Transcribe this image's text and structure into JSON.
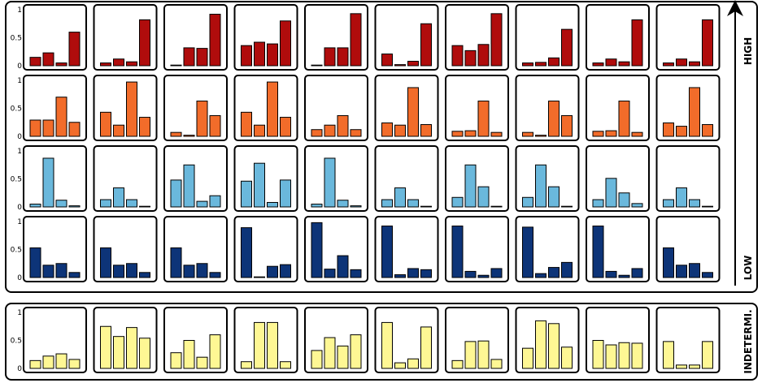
{
  "chart_data": {
    "type": "bar",
    "description_free": true,
    "yticks": [
      "0",
      "0.5",
      "1"
    ],
    "ylim": [
      0,
      1
    ],
    "groups": [
      {
        "label": "HIGH",
        "color": "#b00c0c",
        "values": [
          [
            0.15,
            0.23,
            0.05,
            0.6
          ],
          [
            0.05,
            0.12,
            0.07,
            0.82
          ],
          [
            0.0,
            0.32,
            0.31,
            0.92
          ],
          [
            0.36,
            0.42,
            0.39,
            0.8
          ],
          [
            0.0,
            0.32,
            0.32,
            0.93
          ],
          [
            0.21,
            0.02,
            0.08,
            0.75
          ],
          [
            0.36,
            0.27,
            0.38,
            0.93
          ],
          [
            0.05,
            0.06,
            0.14,
            0.65
          ],
          [
            0.05,
            0.12,
            0.07,
            0.82
          ],
          [
            0.05,
            0.12,
            0.07,
            0.82
          ]
        ]
      },
      {
        "label": "",
        "color": "#f26c2a",
        "values": [
          [
            0.29,
            0.29,
            0.7,
            0.25
          ],
          [
            0.43,
            0.2,
            0.97,
            0.34
          ],
          [
            0.07,
            0.02,
            0.63,
            0.37
          ],
          [
            0.43,
            0.2,
            0.97,
            0.34
          ],
          [
            0.12,
            0.2,
            0.37,
            0.12
          ],
          [
            0.24,
            0.2,
            0.87,
            0.21
          ],
          [
            0.09,
            0.1,
            0.63,
            0.07
          ],
          [
            0.07,
            0.02,
            0.63,
            0.37
          ],
          [
            0.09,
            0.1,
            0.63,
            0.07
          ],
          [
            0.24,
            0.18,
            0.87,
            0.21
          ]
        ]
      },
      {
        "label": "",
        "color": "#6ab8dc",
        "values": [
          [
            0.05,
            0.87,
            0.12,
            0.02
          ],
          [
            0.13,
            0.34,
            0.13,
            0.0
          ],
          [
            0.48,
            0.75,
            0.1,
            0.2
          ],
          [
            0.46,
            0.78,
            0.08,
            0.48
          ],
          [
            0.05,
            0.87,
            0.12,
            0.02
          ],
          [
            0.13,
            0.34,
            0.13,
            0.0
          ],
          [
            0.17,
            0.75,
            0.36,
            0.0
          ],
          [
            0.17,
            0.75,
            0.36,
            0.0
          ],
          [
            0.13,
            0.51,
            0.25,
            0.06
          ],
          [
            0.13,
            0.34,
            0.13,
            0.0
          ]
        ]
      },
      {
        "label": "LOW",
        "color": "#0d3478",
        "values": [
          [
            0.53,
            0.22,
            0.25,
            0.09
          ],
          [
            0.53,
            0.22,
            0.25,
            0.09
          ],
          [
            0.53,
            0.22,
            0.25,
            0.09
          ],
          [
            0.89,
            0.0,
            0.2,
            0.23
          ],
          [
            0.98,
            0.15,
            0.39,
            0.14
          ],
          [
            0.92,
            0.05,
            0.16,
            0.14
          ],
          [
            0.92,
            0.11,
            0.04,
            0.16
          ],
          [
            0.9,
            0.07,
            0.18,
            0.27
          ],
          [
            0.92,
            0.11,
            0.04,
            0.16
          ],
          [
            0.53,
            0.22,
            0.25,
            0.09
          ]
        ]
      },
      {
        "label": "INDETERMI.",
        "color": "#fef794",
        "values": [
          [
            0.14,
            0.22,
            0.26,
            0.16
          ],
          [
            0.75,
            0.57,
            0.73,
            0.54
          ],
          [
            0.28,
            0.5,
            0.2,
            0.6
          ],
          [
            0.12,
            0.82,
            0.82,
            0.12
          ],
          [
            0.32,
            0.55,
            0.4,
            0.6
          ],
          [
            0.82,
            0.1,
            0.17,
            0.74
          ],
          [
            0.14,
            0.48,
            0.49,
            0.16
          ],
          [
            0.36,
            0.85,
            0.8,
            0.38
          ],
          [
            0.5,
            0.42,
            0.46,
            0.45
          ],
          [
            0.48,
            0.06,
            0.06,
            0.48
          ]
        ]
      }
    ]
  }
}
